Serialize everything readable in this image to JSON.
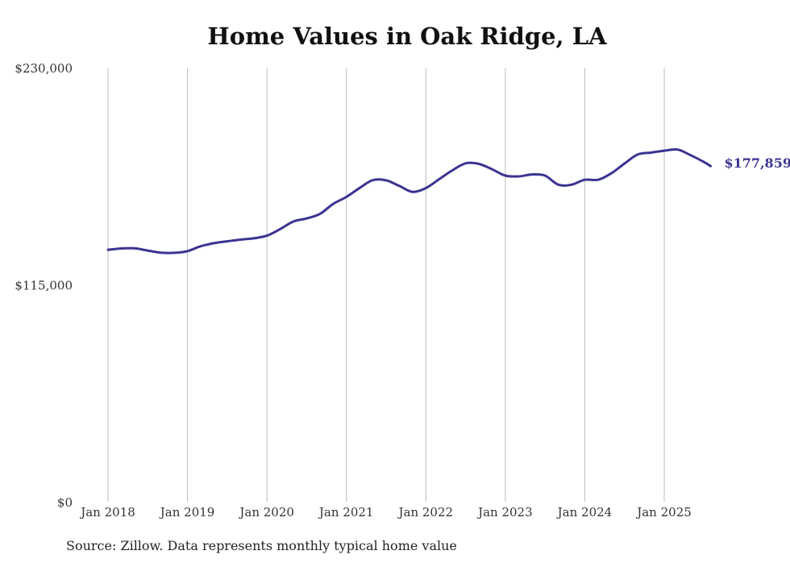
{
  "chart_data": {
    "type": "line",
    "title": "Home Values in Oak Ridge, LA",
    "xlabel": "",
    "ylabel": "",
    "ylim": [
      0,
      230000
    ],
    "y_ticks": [
      {
        "value": 0,
        "label": "$0"
      },
      {
        "value": 115000,
        "label": "$115,000"
      },
      {
        "value": 230000,
        "label": "$230,000"
      }
    ],
    "x_ticks": [
      {
        "value": 2018.0,
        "label": "Jan 2018"
      },
      {
        "value": 2019.0,
        "label": "Jan 2019"
      },
      {
        "value": 2020.0,
        "label": "Jan 2020"
      },
      {
        "value": 2021.0,
        "label": "Jan 2021"
      },
      {
        "value": 2022.0,
        "label": "Jan 2022"
      },
      {
        "value": 2023.0,
        "label": "Jan 2023"
      },
      {
        "value": 2024.0,
        "label": "Jan 2024"
      },
      {
        "value": 2025.0,
        "label": "Jan 2025"
      }
    ],
    "grid": "vertical",
    "series": [
      {
        "color": "#3b3491",
        "end_label": "$177,859",
        "points": [
          [
            2018.0,
            133500
          ],
          [
            2018.167,
            134200
          ],
          [
            2018.333,
            134300
          ],
          [
            2018.5,
            133100
          ],
          [
            2018.667,
            132000
          ],
          [
            2018.833,
            131900
          ],
          [
            2019.0,
            132800
          ],
          [
            2019.167,
            135400
          ],
          [
            2019.333,
            137000
          ],
          [
            2019.5,
            138000
          ],
          [
            2019.667,
            138900
          ],
          [
            2019.833,
            139600
          ],
          [
            2020.0,
            141000
          ],
          [
            2020.167,
            144500
          ],
          [
            2020.333,
            148500
          ],
          [
            2020.5,
            150100
          ],
          [
            2020.667,
            152500
          ],
          [
            2020.833,
            157800
          ],
          [
            2021.0,
            161500
          ],
          [
            2021.167,
            166300
          ],
          [
            2021.333,
            170400
          ],
          [
            2021.5,
            170300
          ],
          [
            2021.667,
            167300
          ],
          [
            2021.833,
            164200
          ],
          [
            2022.0,
            166200
          ],
          [
            2022.167,
            170900
          ],
          [
            2022.333,
            175600
          ],
          [
            2022.5,
            179300
          ],
          [
            2022.667,
            179000
          ],
          [
            2022.833,
            176200
          ],
          [
            2023.0,
            172800
          ],
          [
            2023.167,
            172400
          ],
          [
            2023.333,
            173400
          ],
          [
            2023.5,
            172800
          ],
          [
            2023.667,
            168000
          ],
          [
            2023.833,
            168000
          ],
          [
            2024.0,
            170600
          ],
          [
            2024.167,
            170600
          ],
          [
            2024.333,
            174000
          ],
          [
            2024.5,
            179200
          ],
          [
            2024.667,
            184000
          ],
          [
            2024.833,
            185000
          ],
          [
            2025.0,
            186000
          ],
          [
            2025.167,
            186600
          ],
          [
            2025.333,
            183600
          ],
          [
            2025.5,
            180000
          ],
          [
            2025.583,
            177859
          ]
        ]
      }
    ],
    "annotations": [
      {
        "text": "$177,859",
        "x": 2025.583,
        "y": 177859
      }
    ]
  },
  "source_note": "Source: Zillow. Data represents monthly typical home value"
}
